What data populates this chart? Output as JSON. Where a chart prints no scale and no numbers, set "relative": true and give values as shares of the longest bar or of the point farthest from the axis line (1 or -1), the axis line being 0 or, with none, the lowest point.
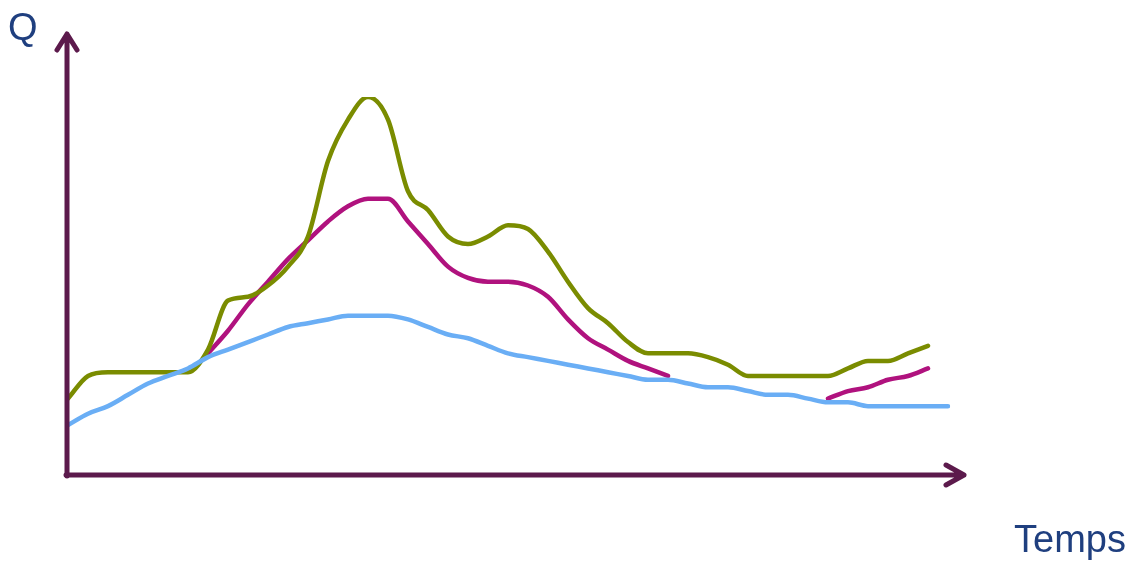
{
  "chart_data": {
    "type": "line",
    "relative": true,
    "xlabel": "Temps",
    "ylabel": "Q",
    "legend": false,
    "marker": "none",
    "categories": [
      null,
      null,
      null,
      null,
      null,
      null,
      null,
      null,
      null,
      null,
      null,
      null,
      null,
      null,
      null,
      null,
      null,
      null,
      null,
      null,
      null,
      null,
      null,
      null,
      null,
      null,
      null,
      null,
      null,
      null,
      null,
      null,
      null,
      null,
      null,
      null,
      null,
      null,
      null,
      null,
      null,
      null,
      null,
      null,
      null
    ],
    "series": [
      {
        "color": "#6aaef5",
        "values": [
          0.13,
          0.16,
          0.18,
          0.21,
          0.24,
          0.26,
          0.28,
          0.31,
          0.33,
          0.35,
          0.37,
          0.39,
          0.4,
          0.41,
          0.42,
          0.42,
          0.42,
          0.41,
          0.39,
          0.37,
          0.36,
          0.34,
          0.32,
          0.31,
          0.3,
          0.29,
          0.28,
          0.27,
          0.26,
          0.25,
          0.25,
          0.24,
          0.23,
          0.23,
          0.22,
          0.21,
          0.21,
          0.2,
          0.19,
          0.19,
          0.18,
          0.18,
          0.18,
          0.18,
          0.18
        ]
      },
      {
        "color": "#7a8c00",
        "values": [
          0.2,
          0.26,
          0.27,
          0.27,
          0.27,
          0.27,
          0.27,
          0.33,
          0.46,
          0.47,
          0.5,
          0.55,
          0.63,
          0.83,
          0.94,
          1,
          0.94,
          0.75,
          0.7,
          0.63,
          0.61,
          0.63,
          0.66,
          0.65,
          0.59,
          0.51,
          0.44,
          0.4,
          0.35,
          0.32,
          0.32,
          0.32,
          0.31,
          0.29,
          0.26,
          0.26,
          0.26,
          0.26,
          0.26,
          0.28,
          0.3,
          0.3,
          0.32,
          0.34,
          null
        ]
      },
      {
        "color": "#b0127e",
        "values": [
          null,
          null,
          null,
          null,
          null,
          null,
          null,
          0.32,
          0.38,
          0.45,
          0.51,
          0.57,
          0.62,
          0.67,
          0.71,
          0.73,
          0.73,
          0.67,
          0.61,
          0.55,
          0.52,
          0.51,
          0.51,
          0.5,
          0.47,
          0.41,
          0.36,
          0.33,
          0.3,
          0.28,
          0.26,
          null,
          null,
          null,
          null,
          null,
          null,
          null,
          0.2,
          0.22,
          0.23,
          0.25,
          0.26,
          0.28,
          null
        ]
      }
    ]
  }
}
